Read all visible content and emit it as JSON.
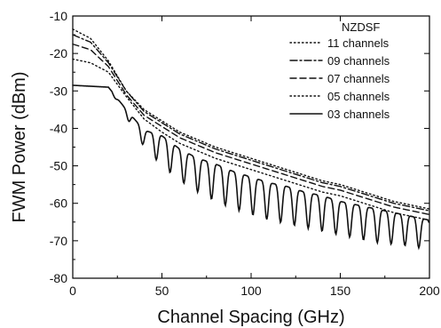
{
  "chart_data": {
    "type": "line",
    "title": "",
    "xlabel": "Channel Spacing (GHz)",
    "ylabel": "FWM Power (dBm)",
    "xlim": [
      0,
      200
    ],
    "ylim": [
      -80,
      -10
    ],
    "xticks": [
      0,
      50,
      100,
      150,
      200
    ],
    "yticks": [
      -80,
      -70,
      -60,
      -50,
      -40,
      -30,
      -20,
      -10
    ],
    "grid": false,
    "legend": {
      "title": "NZDSF",
      "placement": "top-right"
    },
    "series": [
      {
        "name": "11 channels",
        "style": "dotted",
        "x": [
          0,
          10,
          20,
          30,
          40,
          50,
          60,
          70,
          80,
          90,
          100,
          110,
          120,
          130,
          140,
          150,
          160,
          170,
          180,
          190,
          200
        ],
        "y": [
          -13.5,
          -16,
          -22,
          -30,
          -35,
          -38,
          -41,
          -43,
          -45,
          -46.5,
          -48,
          -49.5,
          -51,
          -52.5,
          -54,
          -55,
          -56.5,
          -58,
          -59.5,
          -60.5,
          -61.5
        ]
      },
      {
        "name": "09 channels",
        "style": "dashdot",
        "x": [
          0,
          10,
          20,
          30,
          40,
          50,
          60,
          70,
          80,
          90,
          100,
          110,
          120,
          130,
          140,
          150,
          160,
          170,
          180,
          190,
          200
        ],
        "y": [
          -15,
          -17,
          -22.5,
          -30,
          -35.5,
          -38.5,
          -41.5,
          -43.5,
          -45.5,
          -47,
          -48.5,
          -50,
          -51.5,
          -53,
          -54.5,
          -55.5,
          -57,
          -58.5,
          -60,
          -61,
          -62
        ]
      },
      {
        "name": "07 channels",
        "style": "dashed",
        "x": [
          0,
          10,
          20,
          30,
          40,
          50,
          60,
          70,
          80,
          90,
          100,
          110,
          120,
          130,
          140,
          150,
          160,
          170,
          180,
          190,
          200
        ],
        "y": [
          -17.5,
          -19,
          -23.5,
          -31,
          -36.5,
          -39.5,
          -42.5,
          -44.5,
          -46.5,
          -48,
          -49.5,
          -51,
          -52.5,
          -54,
          -55.5,
          -56.5,
          -58,
          -59.5,
          -61,
          -62,
          -63
        ]
      },
      {
        "name": "05 channels",
        "style": "dotted",
        "x": [
          0,
          10,
          20,
          30,
          40,
          50,
          60,
          70,
          80,
          90,
          100,
          110,
          120,
          130,
          140,
          150,
          160,
          170,
          180,
          190,
          200
        ],
        "y": [
          -21.5,
          -22.5,
          -25,
          -31.5,
          -37.5,
          -41,
          -44,
          -46,
          -48,
          -49.5,
          -51,
          -52.5,
          -54,
          -55.5,
          -57,
          -58,
          -59.5,
          -61,
          -62.5,
          -63.5,
          -64.5
        ]
      },
      {
        "name": "03 channels",
        "style": "solid",
        "x": [
          0,
          10,
          20,
          25,
          30,
          35,
          40,
          45,
          50,
          55,
          60,
          65,
          70,
          75,
          80,
          90,
          100,
          110,
          120,
          130,
          140,
          150,
          160,
          170,
          180,
          190,
          200
        ],
        "y": [
          -28.5,
          -28.6,
          -29,
          -31.5,
          -35.5,
          -39,
          -44.5,
          -41,
          -41.5,
          -50.5,
          -46,
          -48,
          -53.5,
          -49,
          -56.5,
          -58.5,
          -60.5,
          -62,
          -63.5,
          -65,
          -66,
          -67,
          -68,
          -69,
          -70,
          -71,
          -72
        ],
        "envelope": {
          "upper": {
            "x": [
              0,
              20,
              30,
              40,
              50,
              60,
              70,
              80,
              90,
              100,
              110,
              120,
              130,
              140,
              150,
              160,
              170,
              180,
              190,
              200
            ],
            "y": [
              -28.5,
              -29,
              -35,
              -40.5,
              -42,
              -45.5,
              -48,
              -49.5,
              -51.5,
              -53,
              -54.5,
              -55.5,
              -57,
              -58,
              -59.5,
              -60.5,
              -61.5,
              -62.5,
              -63.5,
              -64.5
            ]
          },
          "lower": {
            "x": [
              0,
              20,
              30,
              40,
              50,
              60,
              70,
              80,
              90,
              100,
              110,
              120,
              130,
              140,
              150,
              160,
              170,
              180,
              190,
              200
            ],
            "y": [
              -28.5,
              -29,
              -37,
              -45,
              -50,
              -54,
              -57,
              -59.5,
              -61.5,
              -63,
              -64.5,
              -65.5,
              -66.5,
              -67.5,
              -68.5,
              -69.5,
              -70.5,
              -71,
              -71.5,
              -72.5
            ]
          },
          "first_dip_x": 39,
          "period_x": 7.75
        }
      }
    ]
  }
}
